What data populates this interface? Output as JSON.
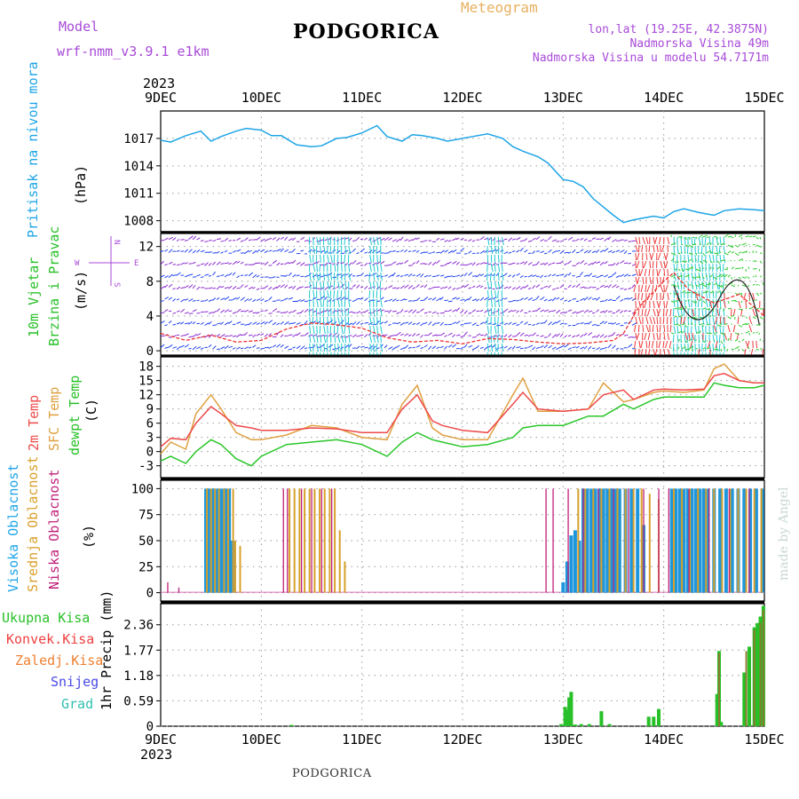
{
  "header": {
    "model_label": "Model",
    "model_value": "wrf-nmm_v3.9.1  e1km",
    "station": "PODGORICA",
    "meteogram": "Meteogram",
    "lonlat": "lon,lat (19.25E, 42.3875N)",
    "elevation": "Nadmorska Visina 49m",
    "model_elevation": "Nadmorska Visina u modelu 54.7171m",
    "footer_station": "PODGORICA",
    "watermark": "made by Angel"
  },
  "colors": {
    "pressure": "#1ea5e6",
    "temp2m": "#ee4a4a",
    "sfc": "#dfa040",
    "dewpt": "#2ac62a",
    "purple": "#9a3ecc",
    "high_cloud": "#1e96dc",
    "mid_cloud": "#d8a02a",
    "low_cloud": "#c0207a",
    "precip_total": "#28c028",
    "precip_conv": "#ee4040",
    "precip_freeze": "#ee8030",
    "precip_snow": "#4a4ae6",
    "precip_hail": "#30c0b0",
    "wind_blue": "#2244ee",
    "wind_purple": "#8a2ad0",
    "wind_cyan": "#20c8d0",
    "wind_green": "#30cc30",
    "wind_red": "#ee3a3a"
  },
  "time_axis": {
    "year": "2023",
    "ticks": [
      "9DEC",
      "10DEC",
      "11DEC",
      "12DEC",
      "13DEC",
      "14DEC",
      "15DEC"
    ]
  },
  "panels": {
    "pressure": {
      "label1": "Pritisak na nivou mora",
      "unit": "(hPa)"
    },
    "wind": {
      "label1": "10m Vjetar",
      "label2": "Brzina i Pravac",
      "unit": "(m/s)",
      "compass_n": "N",
      "compass_w": "W",
      "compass_e": "E",
      "compass_s": "S"
    },
    "temp": {
      "label1": "2m Temp",
      "label2": "SFC Temp",
      "label3": "dewpt Temp",
      "unit": "(C)"
    },
    "cloud": {
      "label1": "Visoka Oblacnost",
      "label2": "Srednja Oblacnost",
      "label3": "Niska Oblacnost",
      "unit": "(%)"
    },
    "precip": {
      "label1": "Ukupna Kisa",
      "label2": "Konvek.Kisa",
      "label3": "Zaledj.Kisa",
      "label4": "Snijeg",
      "label5": "Grad",
      "unit": "1hr Precip (mm)"
    }
  },
  "chart_data": [
    {
      "type": "line",
      "title": "Pritisak na nivou mora",
      "ylabel": "(hPa)",
      "ylim": [
        1006.8,
        1020
      ],
      "yticks": [
        1008,
        1011,
        1014,
        1017
      ],
      "x_days": [
        0,
        0.1,
        0.25,
        0.4,
        0.5,
        0.6,
        0.75,
        0.85,
        1.0,
        1.1,
        1.2,
        1.35,
        1.5,
        1.6,
        1.75,
        1.85,
        2.0,
        2.15,
        2.25,
        2.4,
        2.5,
        2.6,
        2.75,
        2.85,
        3.0,
        3.1,
        3.25,
        3.4,
        3.5,
        3.6,
        3.75,
        3.85,
        4.0,
        4.1,
        4.2,
        4.3,
        4.5,
        4.6,
        4.7,
        4.8,
        4.9,
        5.0,
        5.1,
        5.2,
        5.35,
        5.5,
        5.6,
        5.75,
        5.9,
        6.0
      ],
      "series": [
        {
          "name": "Pritisak na nivou mora",
          "values": [
            1016.8,
            1016.6,
            1017.3,
            1017.8,
            1016.7,
            1017.2,
            1017.8,
            1018.1,
            1017.9,
            1017.3,
            1017.3,
            1016.3,
            1016.1,
            1016.2,
            1017.0,
            1017.1,
            1017.6,
            1018.4,
            1017.2,
            1016.7,
            1017.4,
            1017.3,
            1017.0,
            1016.7,
            1017.0,
            1017.2,
            1017.5,
            1017.0,
            1016.1,
            1015.6,
            1015.0,
            1014.3,
            1012.5,
            1012.3,
            1011.7,
            1010.4,
            1008.6,
            1007.8,
            1008.1,
            1008.3,
            1008.5,
            1008.3,
            1009.0,
            1009.3,
            1008.9,
            1008.6,
            1009.1,
            1009.3,
            1009.2,
            1009.1
          ]
        }
      ]
    },
    {
      "type": "line",
      "title": "10m Vjetar Brzina i Pravac",
      "ylabel": "(m/s)",
      "ylim": [
        -0.5,
        13.5
      ],
      "yticks": [
        0,
        4,
        8,
        12
      ],
      "x_days": [
        0,
        0.25,
        0.5,
        0.75,
        1.0,
        1.25,
        1.5,
        1.75,
        2.0,
        2.25,
        2.5,
        2.75,
        3.0,
        3.25,
        3.5,
        3.75,
        4.0,
        4.25,
        4.5,
        4.6,
        4.75,
        5.0,
        5.1,
        5.25,
        5.5,
        5.75,
        5.9,
        6.0
      ],
      "series": [
        {
          "name": "wind speed",
          "values": [
            2.0,
            1.2,
            1.8,
            1.0,
            1.2,
            2.5,
            3.2,
            3.0,
            2.6,
            1.5,
            1.0,
            1.2,
            0.8,
            1.4,
            1.3,
            1.0,
            0.8,
            0.9,
            1.2,
            2.0,
            5.0,
            8.0,
            9.0,
            7.0,
            5.5,
            6.5,
            5.0,
            4.0
          ]
        }
      ]
    },
    {
      "type": "line",
      "title": "2m Temp / SFC Temp / dewpt Temp",
      "ylabel": "(C)",
      "ylim": [
        -5.5,
        20
      ],
      "yticks": [
        -3,
        0,
        3,
        6,
        9,
        12,
        15,
        18
      ],
      "x_days": [
        0,
        0.1,
        0.25,
        0.35,
        0.5,
        0.6,
        0.75,
        0.9,
        1.0,
        1.25,
        1.5,
        1.75,
        2.0,
        2.25,
        2.4,
        2.55,
        2.7,
        2.8,
        3.0,
        3.25,
        3.5,
        3.6,
        3.75,
        4.0,
        4.25,
        4.4,
        4.6,
        4.7,
        4.9,
        5.0,
        5.2,
        5.4,
        5.5,
        5.6,
        5.75,
        5.9,
        6.0
      ],
      "series": [
        {
          "name": "2m Temp",
          "values": [
            1.0,
            2.8,
            2.5,
            6.0,
            9.5,
            8.0,
            5.5,
            5.0,
            4.5,
            4.5,
            5.0,
            4.8,
            4.0,
            4.0,
            9.0,
            12.0,
            6.5,
            5.5,
            4.5,
            4.0,
            10.0,
            12.5,
            9.0,
            8.5,
            9.0,
            12.0,
            13.0,
            11.0,
            13.0,
            13.2,
            13.0,
            13.2,
            16.0,
            16.5,
            15.0,
            14.5,
            14.5
          ]
        },
        {
          "name": "SFC Temp",
          "values": [
            -0.5,
            2.0,
            0.5,
            8.0,
            12.0,
            9.0,
            4.0,
            2.5,
            2.5,
            3.5,
            5.5,
            5.0,
            3.0,
            2.5,
            10.0,
            14.0,
            5.0,
            3.5,
            2.5,
            2.5,
            12.0,
            15.5,
            8.5,
            8.5,
            9.0,
            14.5,
            10.5,
            11.0,
            12.5,
            12.8,
            12.5,
            13.0,
            17.5,
            18.5,
            15.0,
            14.5,
            14.5
          ]
        },
        {
          "name": "dewpt Temp",
          "values": [
            -2.0,
            -1.0,
            -2.5,
            0.0,
            2.5,
            1.5,
            -1.5,
            -3.0,
            -1.0,
            1.5,
            2.0,
            2.5,
            1.5,
            -1.0,
            2.0,
            4.0,
            2.5,
            2.0,
            1.0,
            1.5,
            3.0,
            5.0,
            5.5,
            5.5,
            7.5,
            7.5,
            10.0,
            9.0,
            11.0,
            11.5,
            11.5,
            11.5,
            14.5,
            14.0,
            13.5,
            13.5,
            14.0
          ]
        }
      ]
    },
    {
      "type": "bar",
      "title": "Visoka / Srednja / Niska Oblacnost",
      "ylabel": "(%)",
      "ylim": [
        0,
        100
      ],
      "yticks": [
        0,
        25,
        50,
        75,
        100
      ],
      "series": [
        {
          "name": "Visoka Oblacnost",
          "x_days": [
            0.45,
            0.47,
            0.49,
            0.51,
            0.53,
            0.55,
            0.57,
            0.6,
            0.62,
            0.64,
            0.66,
            0.68,
            0.71,
            0.73,
            4.0,
            4.04,
            4.08,
            4.12,
            4.16,
            4.2,
            4.24,
            4.28,
            4.32,
            4.36,
            4.4,
            4.44,
            4.48,
            4.52,
            4.56,
            4.62,
            4.68,
            4.74,
            4.8,
            5.08,
            5.12,
            5.16,
            5.2,
            5.24,
            5.28,
            5.32,
            5.36,
            5.4,
            5.44,
            5.5,
            5.56,
            5.62,
            5.68,
            5.74,
            5.8,
            5.86,
            5.92,
            5.98
          ],
          "values": [
            100,
            100,
            100,
            100,
            100,
            100,
            100,
            100,
            100,
            100,
            100,
            100,
            50,
            50,
            10,
            30,
            55,
            60,
            50,
            100,
            100,
            100,
            100,
            100,
            100,
            100,
            100,
            100,
            100,
            100,
            100,
            100,
            65,
            100,
            100,
            100,
            100,
            100,
            100,
            100,
            100,
            100,
            100,
            100,
            100,
            100,
            100,
            100,
            100,
            100,
            100,
            100
          ]
        },
        {
          "name": "Srednja Oblacnost",
          "x_days": [
            0.46,
            0.5,
            0.54,
            0.58,
            0.63,
            0.67,
            0.72,
            0.74,
            0.79,
            1.28,
            1.33,
            1.38,
            1.43,
            1.48,
            1.53,
            1.58,
            1.63,
            1.68,
            1.73,
            1.78,
            1.83,
            4.15,
            4.22,
            4.3,
            4.38,
            4.46,
            4.54,
            4.62,
            4.7,
            4.78,
            4.86,
            4.95,
            5.1,
            5.18,
            5.26,
            5.34,
            5.42,
            5.5,
            5.58,
            5.66,
            5.74,
            5.82,
            5.9,
            5.97
          ],
          "values": [
            100,
            100,
            100,
            100,
            100,
            100,
            100,
            50,
            45,
            100,
            100,
            100,
            100,
            100,
            100,
            100,
            100,
            100,
            100,
            60,
            30,
            100,
            100,
            100,
            100,
            100,
            100,
            100,
            100,
            100,
            95,
            90,
            100,
            100,
            100,
            100,
            100,
            100,
            100,
            100,
            100,
            100,
            100,
            100
          ]
        },
        {
          "name": "Niska Oblacnost",
          "x_days": [
            0.07,
            0.18,
            1.22,
            1.26,
            1.4,
            1.5,
            1.6,
            1.7,
            3.83,
            3.9,
            4.05,
            4.2,
            4.35,
            4.5,
            4.65,
            4.8,
            4.95,
            5.05,
            5.25,
            5.45,
            5.65,
            5.85
          ],
          "values": [
            10,
            5,
            100,
            100,
            100,
            100,
            100,
            100,
            100,
            100,
            100,
            100,
            100,
            100,
            100,
            100,
            100,
            100,
            100,
            100,
            100,
            100
          ]
        }
      ]
    },
    {
      "type": "bar",
      "title": "1hr Precip",
      "ylabel": "1hr Precip (mm)",
      "ylim": [
        0,
        2.85
      ],
      "yticks": [
        0,
        0.59,
        1.18,
        1.77,
        2.36
      ],
      "series": [
        {
          "name": "Ukupna Kisa",
          "x_days": [
            1.3,
            3.98,
            4.02,
            4.04,
            4.06,
            4.08,
            4.12,
            4.18,
            4.26,
            4.38,
            4.46,
            4.85,
            4.9,
            4.95,
            5.53,
            5.55,
            5.57,
            5.8,
            5.85,
            5.9,
            5.93,
            5.96,
            5.99
          ],
          "values": [
            0.03,
            0.05,
            0.45,
            0.38,
            0.67,
            0.8,
            0.04,
            0.05,
            0.05,
            0.35,
            0.05,
            0.22,
            0.22,
            0.4,
            0.75,
            1.75,
            0.1,
            1.25,
            1.85,
            2.3,
            2.4,
            2.55,
            2.8
          ]
        },
        {
          "name": "Konvek.Kisa",
          "x_days": [
            5.55,
            5.82,
            5.9,
            5.96,
            5.99
          ],
          "values": [
            1.7,
            1.75,
            2.25,
            2.4,
            2.7
          ]
        }
      ]
    }
  ]
}
